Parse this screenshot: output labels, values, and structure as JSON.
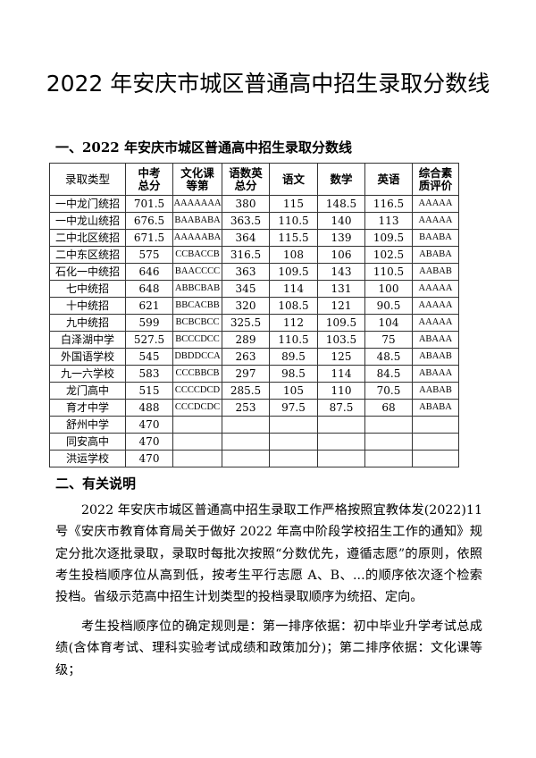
{
  "title": "2022 年安庆市城区普通高中招生录取分数线",
  "section1": "一、2022 年安庆市城区普通高中招生录取分数线",
  "table": {
    "headers": [
      "录取类型",
      "中考\n总分",
      "文化课\n等第",
      "语数英\n总分",
      "语文",
      "数学",
      "英语",
      "综合素\n质评价"
    ],
    "rows": [
      [
        "一中龙门统招",
        "701.5",
        "AAAAAAA",
        "380",
        "115",
        "148.5",
        "116.5",
        "AAAAA"
      ],
      [
        "一中龙山统招",
        "676.5",
        "BAABABA",
        "363.5",
        "110.5",
        "140",
        "113",
        "AAAAA"
      ],
      [
        "二中北区统招",
        "671.5",
        "AAAAABA",
        "364",
        "115.5",
        "139",
        "109.5",
        "BAABA"
      ],
      [
        "二中东区统招",
        "575",
        "CCBACCB",
        "316.5",
        "108",
        "106",
        "102.5",
        "ABABA"
      ],
      [
        "石化一中统招",
        "646",
        "BAACCCC",
        "363",
        "109.5",
        "143",
        "110.5",
        "AABAB"
      ],
      [
        "七中统招",
        "648",
        "ABBCBAB",
        "345",
        "114",
        "131",
        "100",
        "AAAAA"
      ],
      [
        "十中统招",
        "621",
        "BBCACBB",
        "320",
        "108.5",
        "121",
        "90.5",
        "AAAAA"
      ],
      [
        "九中统招",
        "599",
        "BCBCBCC",
        "325.5",
        "112",
        "109.5",
        "104",
        "AAAAA"
      ],
      [
        "白泽湖中学",
        "527.5",
        "BCCCDCC",
        "289",
        "110.5",
        "103.5",
        "75",
        "ABAAA"
      ],
      [
        "外国语学校",
        "545",
        "DBDDCCA",
        "263",
        "89.5",
        "125",
        "48.5",
        "ABAAB"
      ],
      [
        "九一六学校",
        "583",
        "CCCBBCB",
        "297",
        "98.5",
        "114",
        "84.5",
        "ABAAA"
      ],
      [
        "龙门高中",
        "515",
        "CCCCDCD",
        "285.5",
        "105",
        "110",
        "70.5",
        "AABAB"
      ],
      [
        "育才中学",
        "488",
        "CCCDCDC",
        "253",
        "97.5",
        "87.5",
        "68",
        "ABABA"
      ],
      [
        "舒州中学",
        "470",
        "",
        "",
        "",
        "",
        "",
        ""
      ],
      [
        "同安高中",
        "470",
        "",
        "",
        "",
        "",
        "",
        ""
      ],
      [
        "洪运学校",
        "470",
        "",
        "",
        "",
        "",
        "",
        ""
      ]
    ]
  },
  "section2": "二、有关说明",
  "paragraphs": [
    "2022 年安庆市城区普通高中招生录取工作严格按照宜教体发(2022)11 号《安庆市教育体育局关于做好 2022 年高中阶段学校招生工作的通知》规定分批次逐批录取，录取时每批次按照“分数优先，遵循志愿”的原则，依照考生投档顺序位从高到低，按考生平行志愿 A、B、...的顺序依次逐个检索投档。省级示范高中招生计划类型的投档录取顺序为统招、定向。",
    "考生投档顺序位的确定规则是：第一排序依据：初中毕业升学考试总成绩(含体育考试、理科实验考试成绩和政策加分)；第二排序依据：文化课等级；"
  ]
}
